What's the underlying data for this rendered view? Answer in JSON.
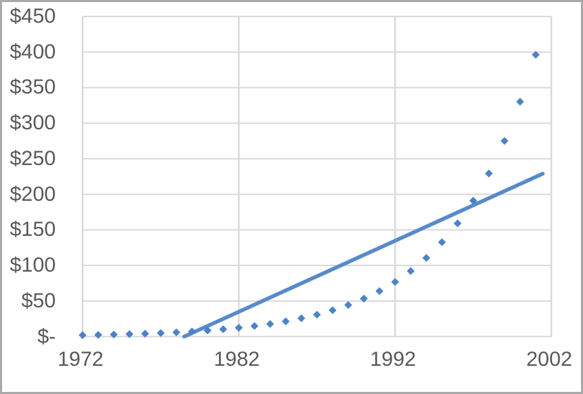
{
  "chart_data": {
    "type": "scatter",
    "title": "",
    "xlabel": "",
    "ylabel": "",
    "xlim": [
      1972,
      2002
    ],
    "ylim": [
      0,
      450
    ],
    "grid": true,
    "legend": false,
    "marker": "diamond",
    "x_tick_values": [
      1972,
      1982,
      1992,
      2002
    ],
    "x_tick_labels": [
      "1972",
      "1982",
      "1992",
      "2002"
    ],
    "y_tick_values": [
      0,
      50,
      100,
      150,
      200,
      250,
      300,
      350,
      400,
      450
    ],
    "y_tick_labels": [
      "$-",
      "$50",
      "$100",
      "$150",
      "$200",
      "$250",
      "$300",
      "$350",
      "$400",
      "$450"
    ],
    "series": [
      {
        "x": [
          1972,
          1973,
          1974,
          1975,
          1976,
          1977,
          1978,
          1979,
          1980,
          1981,
          1982,
          1983,
          1984,
          1985,
          1986,
          1987,
          1988,
          1989,
          1990,
          1991,
          1992,
          1993,
          1994,
          1995,
          1996,
          1997,
          1998,
          1999,
          2000,
          2001
        ],
        "y": [
          2.0,
          2.4,
          2.9,
          3.5,
          4.1,
          5.0,
          6.0,
          7.2,
          8.6,
          10.3,
          12.4,
          14.9,
          17.8,
          21.4,
          25.7,
          30.8,
          37.0,
          44.4,
          53.3,
          64.0,
          76.8,
          92.1,
          110.6,
          132.7,
          159.2,
          191.1,
          229.3,
          275.1,
          330.2,
          396.2
        ]
      }
    ],
    "trendline": {
      "x1": 1978.5,
      "y1": 0,
      "x2": 2001.45,
      "y2": 229
    },
    "colors": {
      "marker": "#4d82c5",
      "trendline": "#578acb",
      "gridline": "#d9d9d9",
      "tick_text": "#595959",
      "frame_border": "#a9a9a9",
      "background": "#ffffff"
    }
  }
}
